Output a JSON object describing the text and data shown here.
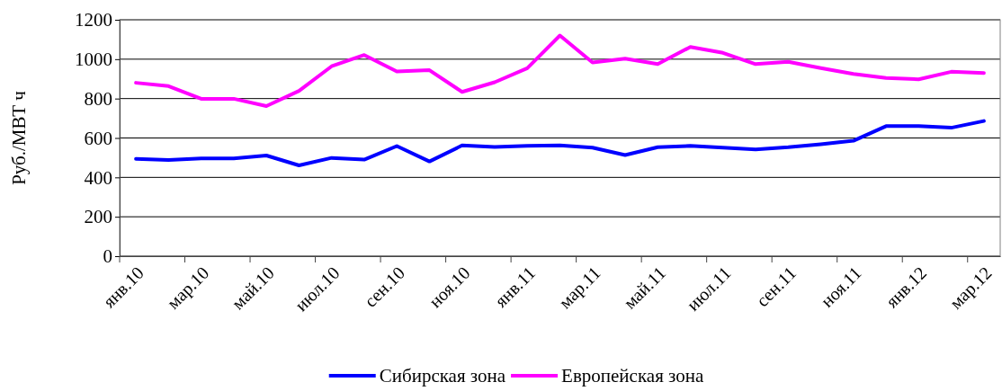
{
  "chart_data": {
    "type": "line",
    "ylabel": "Руб./МВТ ч",
    "categories": [
      "янв.10",
      null,
      "мар.10",
      null,
      "май.10",
      null,
      "июл.10",
      null,
      "сен.10",
      null,
      "ноя.10",
      null,
      "янв.11",
      null,
      "мар.11",
      null,
      "май.11",
      null,
      "июл.11",
      null,
      "сен.11",
      null,
      "ноя.11",
      null,
      "янв.12",
      null,
      "мар.12"
    ],
    "series": [
      {
        "name": "Сибирская зона",
        "color": "#0000ff",
        "values": [
          494,
          488,
          496,
          496,
          511,
          461,
          499,
          490,
          559,
          481,
          562,
          554,
          560,
          562,
          551,
          513,
          553,
          560,
          551,
          542,
          553,
          568,
          586,
          660,
          660,
          652,
          686
        ]
      },
      {
        "name": "Европейская зона",
        "color": "#ff00ff",
        "values": [
          880,
          863,
          799,
          799,
          762,
          839,
          964,
          1021,
          938,
          944,
          834,
          883,
          954,
          1120,
          983,
          1003,
          975,
          1062,
          1032,
          975,
          987,
          955,
          925,
          905,
          898,
          936,
          930
        ]
      }
    ],
    "ylim": [
      0,
      1200
    ],
    "yticks": [
      0,
      200,
      400,
      600,
      800,
      1000,
      1200
    ],
    "grid": "y",
    "legend": "bottom",
    "marker": "none",
    "line_style": "solid"
  }
}
